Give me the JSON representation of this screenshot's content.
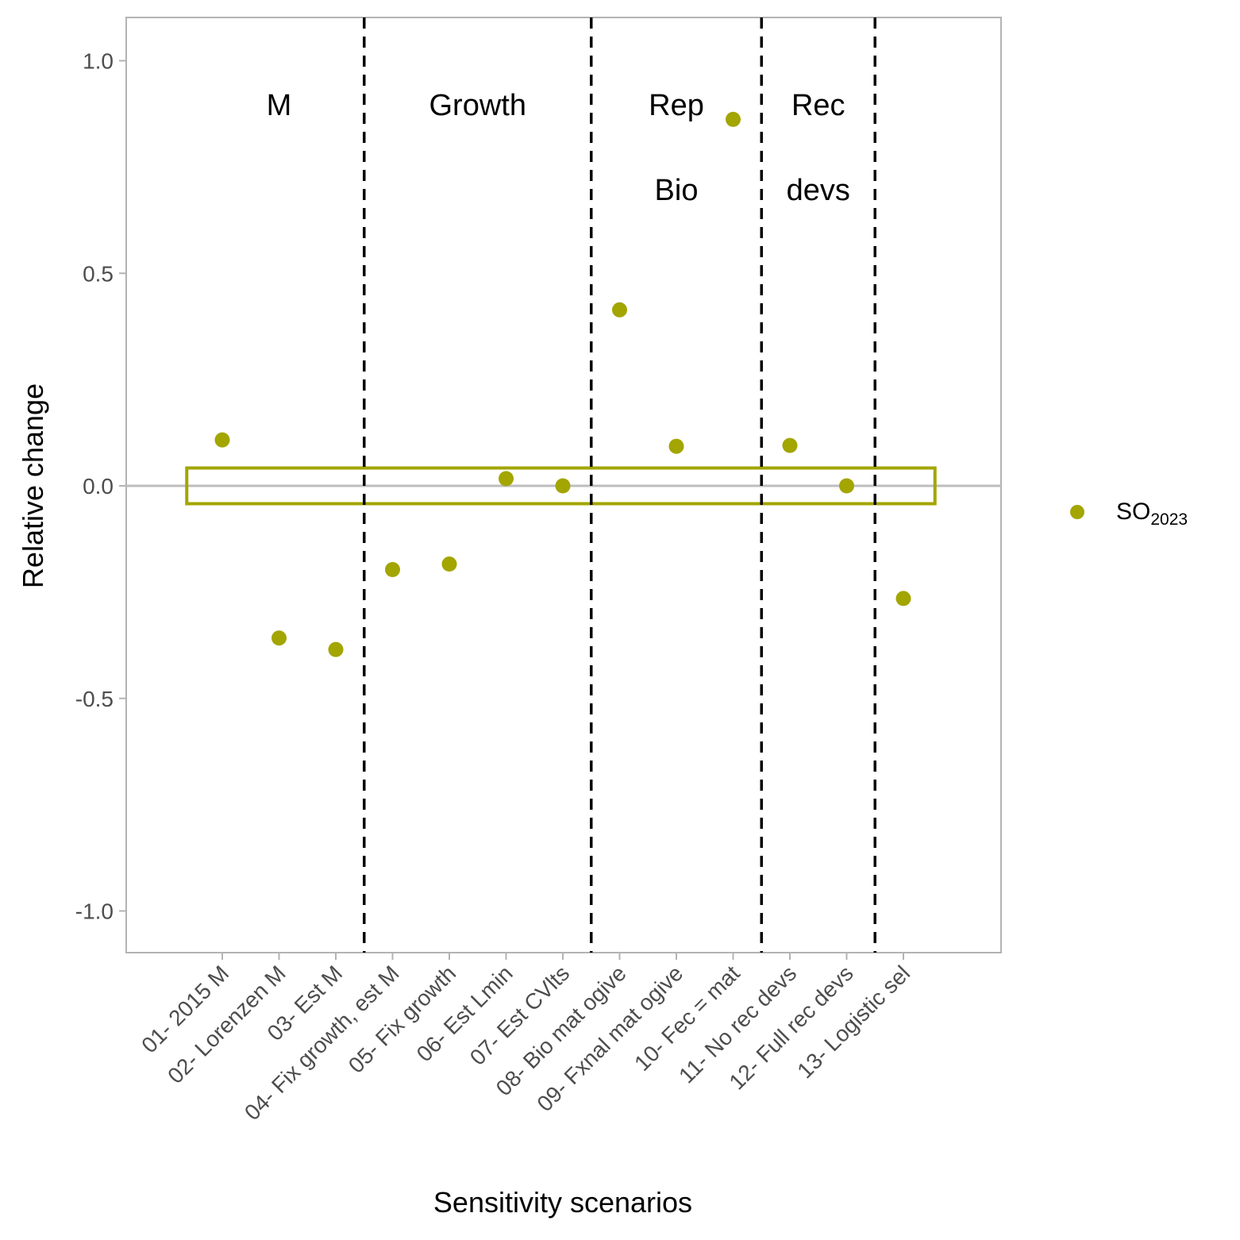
{
  "chart_data": {
    "type": "scatter",
    "xlabel": "Sensitivity scenarios",
    "ylabel": "Relative change",
    "ylim": [
      -1.1,
      1.1
    ],
    "yticks": [
      1.0,
      0.5,
      0.0,
      -0.5,
      -1.0
    ],
    "ytick_labels": [
      "1.0",
      "0.5",
      "0.0",
      "-0.5",
      "-1.0"
    ],
    "categories": [
      "01- 2015 M",
      "02- Lorenzen M",
      "03- Est M",
      "04- Fix growth, est M",
      "05- Fix growth",
      "06- Est Lmin",
      "07- Est CVlts",
      "08- Bio mat ogive",
      "09- Fxnal mat ogive",
      "10- Fec = mat",
      "11- No rec devs",
      "12- Full rec devs",
      "13- Logistic sel"
    ],
    "series": [
      {
        "legend_main": "SO",
        "legend_sub": "2023",
        "color": "#a3a500",
        "values": [
          0.108,
          -0.358,
          -0.385,
          -0.197,
          -0.184,
          0.017,
          0.0,
          0.414,
          0.093,
          0.862,
          0.095,
          0.0,
          -0.265
        ]
      }
    ],
    "reference_line": {
      "y": 0.0,
      "color": "#bebebe"
    },
    "band": {
      "ymin": -0.042,
      "ymax": 0.042,
      "color": "#a3a500"
    },
    "separators_after_index": [
      2.5,
      6.5,
      9.5,
      11.5
    ],
    "groups": [
      {
        "lines": [
          "M"
        ],
        "center": 1
      },
      {
        "lines": [
          "Growth"
        ],
        "center": 4.5
      },
      {
        "lines": [
          "Rep",
          "Bio"
        ],
        "center": 8
      },
      {
        "lines": [
          "Rec",
          "devs"
        ],
        "center": 10.5
      }
    ],
    "grid": false,
    "legend_position": "right"
  }
}
